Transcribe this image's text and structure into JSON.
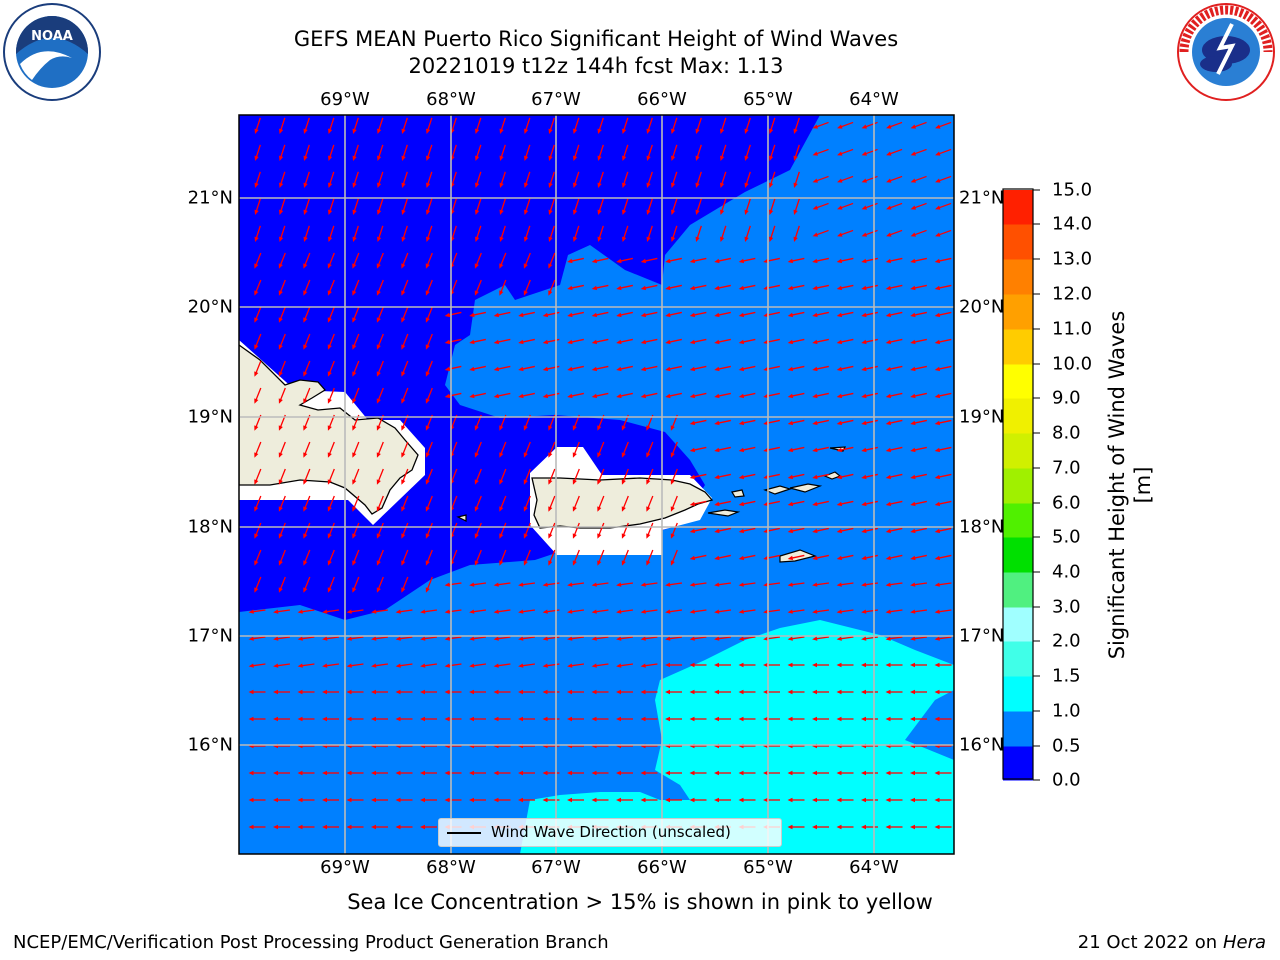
{
  "header": {
    "title_line1": "GEFS MEAN Puerto Rico Significant Height of Wind Waves",
    "title_line2": "20221019 t12z 144h fcst   Max: 1.13"
  },
  "logos": {
    "left": "noaa-logo",
    "right": "national-weather-service-logo"
  },
  "map": {
    "lon_labels": [
      "69°W",
      "68°W",
      "67°W",
      "66°W",
      "65°W",
      "64°W"
    ],
    "lat_labels": [
      "21°N",
      "20°N",
      "19°N",
      "18°N",
      "17°N",
      "16°N"
    ],
    "legend_label": "Wind Wave Direction (unscaled)",
    "colors": {
      "deep_blue": "#0000ff",
      "mid_blue": "#0080ff",
      "cyan": "#00ffff",
      "land": "#eeeddc",
      "arrow": "#ff0000",
      "grid": "#bbbbbb"
    }
  },
  "colorbar": {
    "title": "Significant Height of Wind Waves [m]",
    "tick_labels": [
      "0.0",
      "0.5",
      "1.0",
      "1.5",
      "2.0",
      "3.0",
      "4.0",
      "5.0",
      "6.0",
      "7.0",
      "8.0",
      "9.0",
      "10.0",
      "11.0",
      "12.0",
      "13.0",
      "14.0",
      "15.0"
    ],
    "colors": [
      "#0000ff",
      "#0080ff",
      "#00ffff",
      "#40ffe8",
      "#a0ffff",
      "#50f080",
      "#00e000",
      "#50f000",
      "#a0f000",
      "#d0f000",
      "#f0f000",
      "#ffff00",
      "#ffcc00",
      "#ffa000",
      "#ff8000",
      "#ff5000",
      "#ff2000"
    ]
  },
  "note": "Sea Ice Concentration > 15% is shown in pink to yellow",
  "footer": {
    "left": "NCEP/EMC/Verification Post Processing Product Generation Branch",
    "date": "21 Oct 2022 on ",
    "machine": "Hera"
  }
}
